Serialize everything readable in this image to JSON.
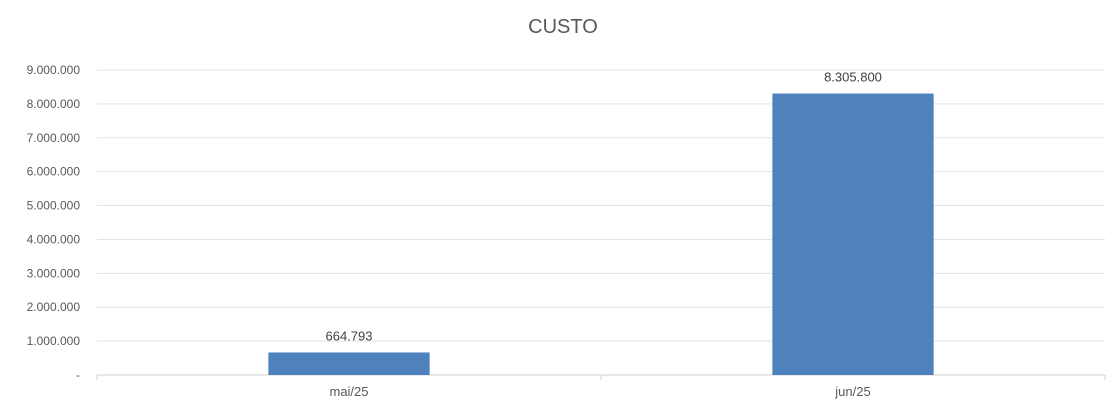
{
  "chart_data": {
    "type": "bar",
    "title": "CUSTO",
    "categories": [
      "mai/25",
      "jun/25"
    ],
    "values": [
      664793,
      8305800
    ],
    "value_labels": [
      "664.793",
      "8.305.800"
    ],
    "ylim": [
      0,
      9000000
    ],
    "yticks": [
      0,
      1000000,
      2000000,
      3000000,
      4000000,
      5000000,
      6000000,
      7000000,
      8000000,
      9000000
    ],
    "ytick_labels": [
      "-",
      "1.000.000",
      "2.000.000",
      "3.000.000",
      "4.000.000",
      "5.000.000",
      "6.000.000",
      "7.000.000",
      "8.000.000",
      "9.000.000"
    ],
    "xlabel": "",
    "ylabel": "",
    "grid": true,
    "legend": "none",
    "bar_color": "#4f81bd"
  }
}
